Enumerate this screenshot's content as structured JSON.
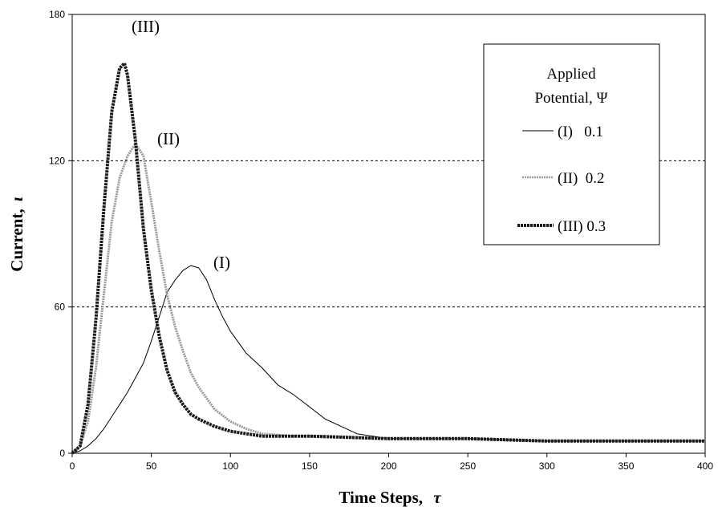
{
  "chart_data": {
    "type": "line",
    "xlabel": "Time Steps,",
    "xlabel_symbol": "τ",
    "ylabel": "Current,",
    "ylabel_symbol": "ι",
    "xlim": [
      0,
      400
    ],
    "ylim": [
      0,
      180
    ],
    "x_ticks": [
      0,
      50,
      100,
      150,
      200,
      250,
      300,
      350,
      400
    ],
    "y_ticks": [
      0,
      60,
      120,
      180
    ],
    "gridlines_y": [
      60,
      120
    ],
    "grid_style": "dashed",
    "legend_placement": "top-right",
    "legend_title_line1": "Applied",
    "legend_title_line2": "Potential, Ψ",
    "series": [
      {
        "name": "(I)",
        "legend_label": "(I)   0.1",
        "curve_label": "(I)",
        "style": "thin-solid",
        "color": "#000000",
        "x": [
          0,
          5,
          10,
          15,
          20,
          25,
          30,
          35,
          40,
          45,
          50,
          55,
          60,
          65,
          70,
          75,
          80,
          85,
          90,
          95,
          100,
          110,
          120,
          130,
          140,
          150,
          160,
          170,
          180,
          190,
          200,
          220,
          250,
          300,
          350,
          400
        ],
        "y": [
          0,
          1,
          3,
          6,
          10,
          15,
          20,
          25,
          31,
          37,
          46,
          56,
          66,
          71,
          75,
          77,
          76,
          71,
          63,
          56,
          50,
          41,
          35,
          28,
          24,
          19,
          14,
          11,
          8,
          7,
          6,
          6,
          6,
          5,
          5,
          5
        ]
      },
      {
        "name": "(II)",
        "legend_label": "(II)  0.2",
        "curve_label": "(II)",
        "style": "gray-dotted",
        "color": "#9a9a9a",
        "x": [
          0,
          5,
          10,
          15,
          20,
          25,
          30,
          35,
          40,
          45,
          50,
          55,
          60,
          65,
          70,
          75,
          80,
          90,
          100,
          110,
          120,
          140,
          160,
          200,
          250,
          300,
          350,
          400
        ],
        "y": [
          0,
          3,
          13,
          35,
          65,
          95,
          113,
          122,
          127,
          122,
          103,
          83,
          65,
          52,
          42,
          33,
          27,
          18,
          13,
          10,
          8,
          7,
          7,
          6,
          6,
          5,
          5,
          5
        ]
      },
      {
        "name": "(III)",
        "legend_label": "(III) 0.3",
        "curve_label": "(III)",
        "style": "thick-dark",
        "color": "#1a1a1a",
        "x": [
          0,
          5,
          10,
          15,
          20,
          25,
          30,
          33,
          35,
          40,
          45,
          50,
          55,
          60,
          65,
          70,
          75,
          80,
          90,
          100,
          120,
          150,
          200,
          250,
          300,
          350,
          400
        ],
        "y": [
          0,
          3,
          20,
          55,
          100,
          140,
          158,
          160,
          155,
          128,
          92,
          67,
          48,
          34,
          25,
          20,
          16,
          14,
          11,
          9,
          7,
          7,
          6,
          6,
          5,
          5,
          5
        ]
      }
    ]
  }
}
